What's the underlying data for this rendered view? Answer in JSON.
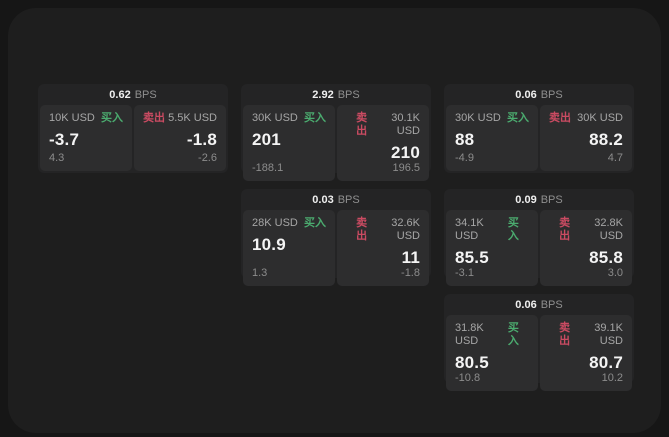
{
  "theme": {
    "page_bg": "#161616",
    "window_bg": "#1e1e1e",
    "card_bg": "#242425",
    "panel_bg": "#2d2d2e",
    "buy_color": "#4bab6f",
    "sell_color": "#cb4b62"
  },
  "cards": [
    {
      "bps_value": "0.62",
      "bps_unit": "BPS",
      "buy": {
        "amount": "10K USD",
        "action": "买入",
        "price": "-3.7",
        "delta": "4.3"
      },
      "sell": {
        "action": "卖出",
        "amount": "5.5K USD",
        "price": "-1.8",
        "delta": "-2.6"
      }
    },
    {
      "bps_value": "2.92",
      "bps_unit": "BPS",
      "buy": {
        "amount": "30K USD",
        "action": "买入",
        "price": "201",
        "delta": "-188.1"
      },
      "sell": {
        "action": "卖出",
        "amount": "30.1K USD",
        "price": "210",
        "delta": "196.5"
      }
    },
    {
      "bps_value": "0.06",
      "bps_unit": "BPS",
      "buy": {
        "amount": "30K USD",
        "action": "买入",
        "price": "88",
        "delta": "-4.9"
      },
      "sell": {
        "action": "卖出",
        "amount": "30K USD",
        "price": "88.2",
        "delta": "4.7"
      }
    },
    {
      "bps_value": "0.03",
      "bps_unit": "BPS",
      "buy": {
        "amount": "28K USD",
        "action": "买入",
        "price": "10.9",
        "delta": "1.3"
      },
      "sell": {
        "action": "卖出",
        "amount": "32.6K USD",
        "price": "11",
        "delta": "-1.8"
      }
    },
    {
      "bps_value": "0.09",
      "bps_unit": "BPS",
      "buy": {
        "amount": "34.1K USD",
        "action": "买入",
        "price": "85.5",
        "delta": "-3.1"
      },
      "sell": {
        "action": "卖出",
        "amount": "32.8K USD",
        "price": "85.8",
        "delta": "3.0"
      }
    },
    {
      "bps_value": "0.06",
      "bps_unit": "BPS",
      "buy": {
        "amount": "31.8K USD",
        "action": "买入",
        "price": "80.5",
        "delta": "-10.8"
      },
      "sell": {
        "action": "卖出",
        "amount": "39.1K USD",
        "price": "80.7",
        "delta": "10.2"
      }
    }
  ]
}
